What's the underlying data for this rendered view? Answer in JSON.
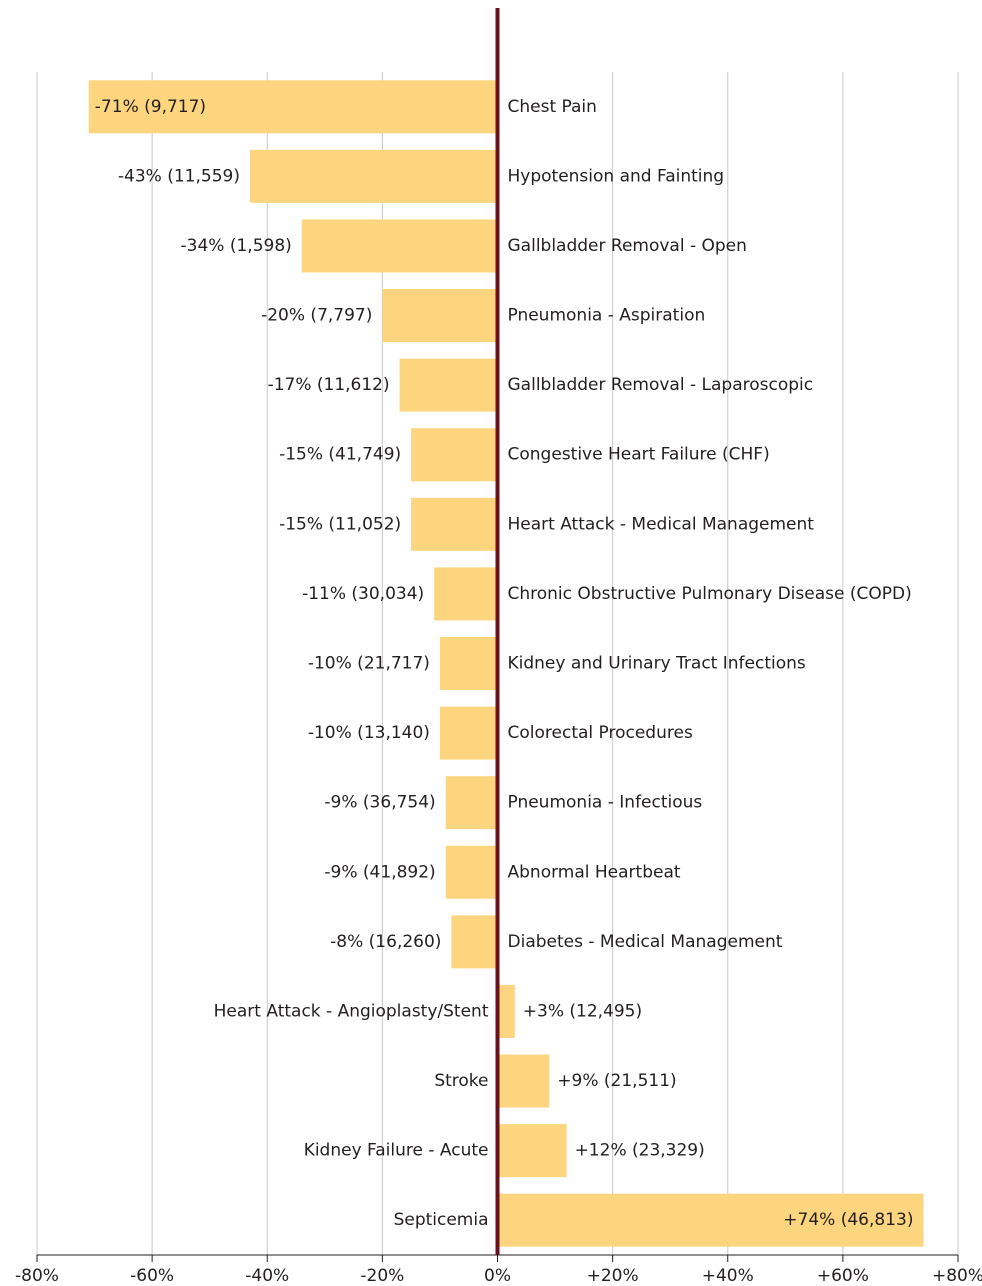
{
  "chart_data": {
    "type": "bar",
    "orientation": "horizontal",
    "categories": [
      "Chest Pain",
      "Hypotension and Fainting",
      "Gallbladder Removal - Open",
      "Pneumonia - Aspiration",
      "Gallbladder Removal - Laparoscopic",
      "Congestive Heart Failure (CHF)",
      "Heart Attack - Medical Management",
      "Chronic Obstructive Pulmonary Disease (COPD)",
      "Kidney and Urinary Tract Infections",
      "Colorectal Procedures",
      "Pneumonia - Infectious",
      "Abnormal Heartbeat",
      "Diabetes - Medical Management",
      "Heart Attack - Angioplasty/Stent",
      "Stroke",
      "Kidney Failure - Acute",
      "Septicemia"
    ],
    "values": [
      -71,
      -43,
      -34,
      -20,
      -17,
      -15,
      -15,
      -11,
      -10,
      -10,
      -9,
      -9,
      -8,
      3,
      9,
      12,
      74
    ],
    "value_labels": [
      "-71% (9,717)",
      "-43% (11,559)",
      "-34% (1,598)",
      "-20% (7,797)",
      "-17% (11,612)",
      "-15% (41,749)",
      "-15% (11,052)",
      "-11% (30,034)",
      "-10% (21,717)",
      "-10% (13,140)",
      "-9% (36,754)",
      "-9% (41,892)",
      "-8% (16,260)",
      "+3% (12,495)",
      "+9% (21,511)",
      "+12% (23,329)",
      "+74% (46,813)"
    ],
    "color": "#fdd57f",
    "zero_line_color": "#6b0f1a",
    "xlim": [
      -80,
      80
    ],
    "xticks": [
      {
        "value": -80,
        "label": "-80%"
      },
      {
        "value": -60,
        "label": "-60%"
      },
      {
        "value": -40,
        "label": "-40%"
      },
      {
        "value": -20,
        "label": "-20%"
      },
      {
        "value": 0,
        "label": "0%"
      },
      {
        "value": 20,
        "label": "+20%"
      },
      {
        "value": 40,
        "label": "+40%"
      },
      {
        "value": 60,
        "label": "+60%"
      },
      {
        "value": 80,
        "label": "+80%"
      }
    ],
    "grid": true
  }
}
